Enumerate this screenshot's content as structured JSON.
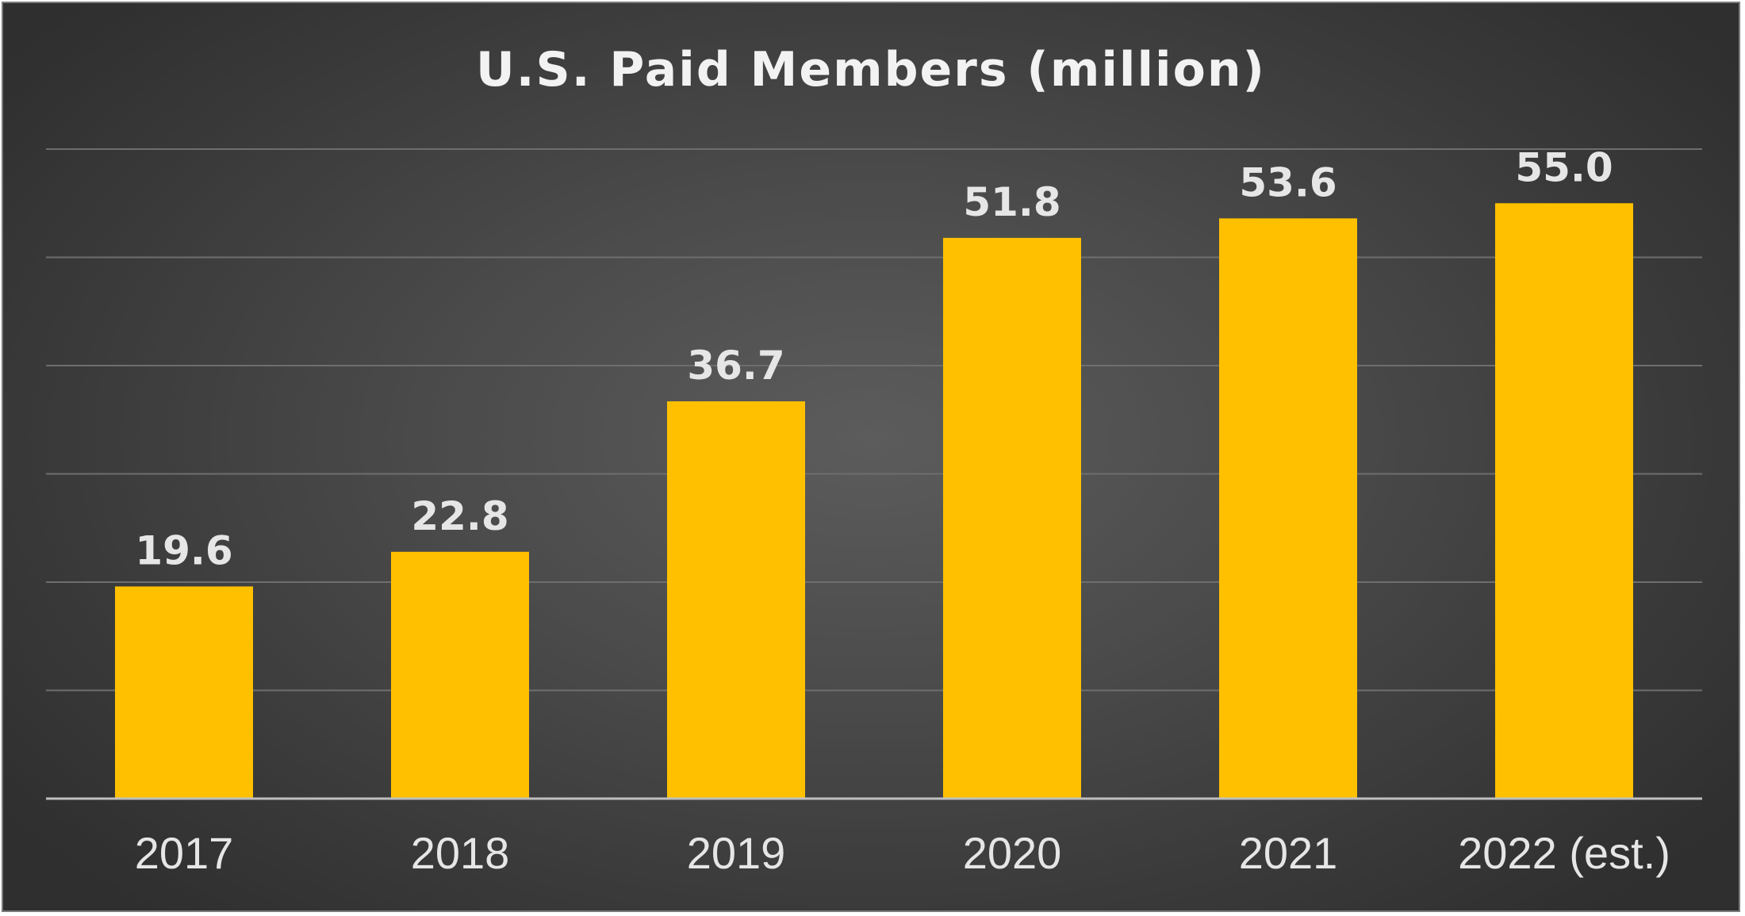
{
  "chart_data": {
    "type": "bar",
    "title": "U.S. Paid Members (million)",
    "categories": [
      "2017",
      "2018",
      "2019",
      "2020",
      "2021",
      "2022 (est.)"
    ],
    "values": [
      19.6,
      22.8,
      36.7,
      51.8,
      53.6,
      55.0
    ],
    "data_labels": [
      "19.6",
      "22.8",
      "36.7",
      "51.8",
      "53.6",
      "55.0"
    ],
    "xlabel": "",
    "ylabel": "",
    "ylim": [
      0,
      60
    ],
    "grid": true,
    "legend": "none",
    "colors": {
      "bar": "#FFC000",
      "background": "#474747",
      "gridline": "#6e6e6e",
      "axis": "#bfbfbf",
      "text": "#e6e6e6"
    }
  }
}
